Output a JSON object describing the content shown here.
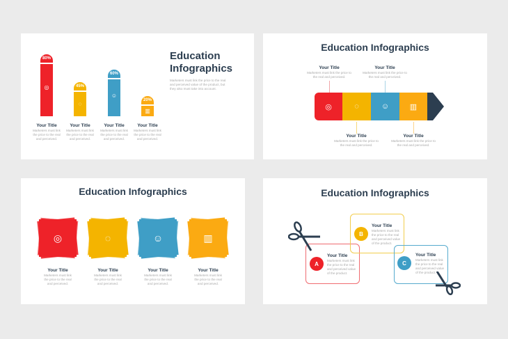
{
  "colors": {
    "red": "#ee2229",
    "yellow": "#f4b400",
    "blue": "#3f9ec6",
    "orange": "#fbaa12",
    "dark": "#2c3e50"
  },
  "slide1": {
    "title_line1": "Education",
    "title_line2": "Infographics",
    "description": "Marketers must link the price to the real and perceived value of the product, but they also must take into account.",
    "bars": [
      {
        "percent": "80%",
        "value": 80,
        "icon": "globe-icon",
        "title": "Your Title",
        "text": "Marketers must link the price to the real and perceived."
      },
      {
        "percent": "45%",
        "value": 45,
        "icon": "chat-icon",
        "title": "Your Title",
        "text": "Marketers must link the price to the real and perceived."
      },
      {
        "percent": "60%",
        "value": 60,
        "icon": "group-icon",
        "title": "Your Title",
        "text": "Marketers must link the price to the real and perceived."
      },
      {
        "percent": "20%",
        "value": 20,
        "icon": "chart-icon",
        "title": "Your Title",
        "text": "Marketers must link the price to the real and perceived."
      }
    ]
  },
  "slide2": {
    "title": "Education Infographics",
    "items": [
      {
        "icon": "globe-icon",
        "title": "Your Title",
        "text": "Marketers must link the price to the real and perceived."
      },
      {
        "icon": "chat-icon",
        "title": "Your Title",
        "text": "Marketers must link the price to the real and perceived."
      },
      {
        "icon": "group-icon",
        "title": "Your Title",
        "text": "Marketers must link the price to the real and perceived."
      },
      {
        "icon": "chart-icon",
        "title": "Your Title",
        "text": "Marketers must link the price to the real and perceived."
      }
    ]
  },
  "slide3": {
    "title": "Education Infographics",
    "items": [
      {
        "icon": "globe-icon",
        "title": "Your Title",
        "text": "Marketers must link the price to the real and perceived."
      },
      {
        "icon": "chat-icon",
        "title": "Your Title",
        "text": "Marketers must link the price to the real and perceived."
      },
      {
        "icon": "group-icon",
        "title": "Your Title",
        "text": "Marketers must link the price to the real and perceived."
      },
      {
        "icon": "chart-icon",
        "title": "Your Title",
        "text": "Marketers must link the price to the real and perceived."
      }
    ]
  },
  "slide4": {
    "title": "Education Infographics",
    "items": [
      {
        "letter": "A",
        "title": "Your Title",
        "text": "Marketers must link the price to the real and perceived value of the product."
      },
      {
        "letter": "B",
        "title": "Your Title",
        "text": "Marketers must link the price to the real and perceived value of the product."
      },
      {
        "letter": "C",
        "title": "Your Title",
        "text": "Marketers must link the price to the real and perceived value of the product."
      }
    ]
  }
}
